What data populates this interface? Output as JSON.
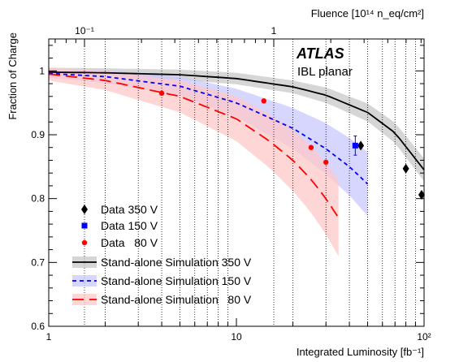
{
  "chart_data": {
    "type": "scatter",
    "xlabel": "Integrated Luminosity [fb⁻¹]",
    "ylabel": "Fraction of Charge",
    "top_axis_label": "Fluence [10¹⁴ n_eq/cm²]",
    "top_axis_ticks": [
      "10⁻¹",
      "1"
    ],
    "x_scale": "log",
    "xlim": [
      1,
      100
    ],
    "ylim": [
      0.6,
      1.05
    ],
    "x_ticks": [
      "1",
      "10",
      "10²"
    ],
    "y_ticks": [
      "0.6",
      "0.7",
      "0.8",
      "0.9",
      "1"
    ],
    "grid": "vertical dotted lines at decades",
    "experiment_label": "ATLAS",
    "experiment_sublabel": "IBL planar",
    "legend_position": "bottom-left",
    "series": [
      {
        "name": "Data 350 V",
        "kind": "data",
        "marker": "diamond",
        "color": "#000000",
        "x": [
          46,
          80,
          97
        ],
        "y": [
          0.883,
          0.847,
          0.806
        ]
      },
      {
        "name": "Data 150 V",
        "kind": "data",
        "marker": "square",
        "color": "#0000ff",
        "x": [
          43
        ],
        "y": [
          0.883
        ],
        "yerr": [
          0.015
        ]
      },
      {
        "name": "Data   80 V",
        "kind": "data",
        "marker": "circle",
        "color": "#ff0000",
        "x": [
          4,
          14,
          25,
          30
        ],
        "y": [
          0.965,
          0.953,
          0.88,
          0.857
        ]
      },
      {
        "name": "Stand-alone Simulation 350 V",
        "kind": "simulation",
        "style": "solid",
        "color": "#000000",
        "band_color": "#c8c8c8",
        "x": [
          1,
          2,
          5,
          10,
          20,
          30,
          50,
          70,
          100
        ],
        "y": [
          0.998,
          0.997,
          0.994,
          0.988,
          0.975,
          0.962,
          0.935,
          0.903,
          0.845
        ],
        "band": [
          0.007,
          0.007,
          0.008,
          0.009,
          0.01,
          0.012,
          0.014,
          0.016,
          0.018
        ]
      },
      {
        "name": "Stand-alone Simulation 150 V",
        "kind": "simulation",
        "style": "dashed-short",
        "color": "#0000ff",
        "band_color": "#c8c8ff",
        "x": [
          1,
          2,
          5,
          10,
          20,
          30,
          40,
          50
        ],
        "y": [
          0.996,
          0.991,
          0.976,
          0.95,
          0.91,
          0.878,
          0.85,
          0.823
        ],
        "band": [
          0.007,
          0.01,
          0.015,
          0.022,
          0.032,
          0.04,
          0.045,
          0.05
        ]
      },
      {
        "name": "Stand-alone Simulation   80 V",
        "kind": "simulation",
        "style": "dashed-long",
        "color": "#ff0000",
        "band_color": "#ffc8c8",
        "x": [
          1,
          2,
          5,
          10,
          15,
          20,
          25,
          30,
          35
        ],
        "y": [
          0.995,
          0.985,
          0.96,
          0.925,
          0.89,
          0.86,
          0.83,
          0.8,
          0.77
        ],
        "band": [
          0.01,
          0.015,
          0.025,
          0.035,
          0.042,
          0.048,
          0.052,
          0.056,
          0.06
        ]
      }
    ]
  }
}
